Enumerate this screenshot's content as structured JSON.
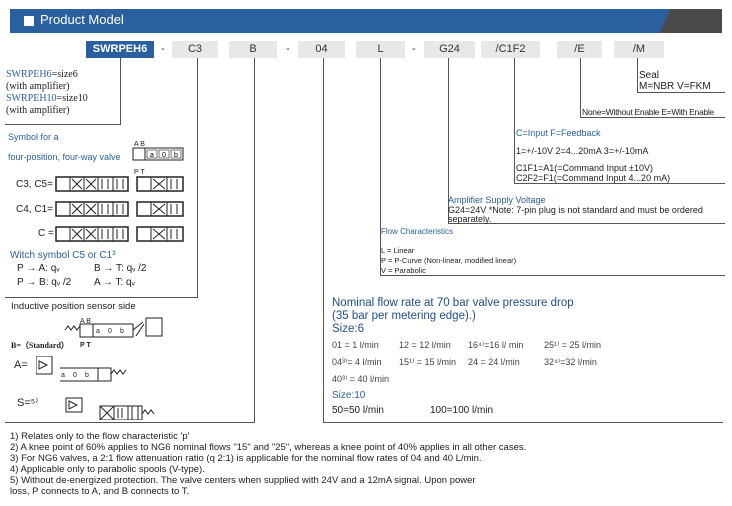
{
  "header": {
    "title": "Product Model"
  },
  "model_codes": [
    {
      "code": "SWRPEH6"
    },
    {
      "code": "C3"
    },
    {
      "code": "B"
    },
    {
      "code": "04"
    },
    {
      "code": "L"
    },
    {
      "code": "G24"
    },
    {
      "code": "/C1F2"
    },
    {
      "code": "/E"
    },
    {
      "code": "/M"
    }
  ],
  "separators": [
    "-",
    "-",
    "-"
  ],
  "size_legend": {
    "l1a": "SWRPEH6",
    "l1b": "=size6",
    "l2": "(with amplifier)",
    "l3a": "SWRPEH10",
    "l3b": "=size10",
    "l4": "(with amplifier)"
  },
  "symbols": {
    "title1": "Symbol for a",
    "title2": "four-position, four-way valve",
    "ports_top": "A B",
    "ports_bottom": "P T",
    "pos": [
      "a",
      "0",
      "b"
    ],
    "rows": [
      "C3, C5=",
      "C4, C1=",
      "C ="
    ],
    "witch_title": "Witch symbol C5 or C1³",
    "flows": [
      "P → A: qᵥ",
      "B → T: qᵥ /2",
      "P → B: qᵥ /2",
      "A → T: qᵥ"
    ]
  },
  "sensor": {
    "title": "Inductive position sensor side",
    "b": "B=（Standard）",
    "a": "A=",
    "s": "S=⁵⁾",
    "ports_top": "A B",
    "ports_bottom": "P T"
  },
  "seal": {
    "title": "Seal",
    "text": "M=NBR V=FKM"
  },
  "enable": {
    "text": "None=Without Enable E=With Enable"
  },
  "signal": {
    "l1": "C=Input  F=Feedback",
    "l2": "1=+/-10V    2=4...20mA    3=+/-10mA",
    "l3": "C1F1=A1(=Command Input ±10V)",
    "l4": "C2F2=F1(=Command Input 4...20 mA)"
  },
  "supply": {
    "title": "Amplifier Supply Voltage",
    "l1": "G24=24V   *Note: 7-pin plug is not standard and must be ordered",
    "l2": "separately."
  },
  "flow_char": {
    "title": "Flow Characteristics",
    "items": [
      "L = Linear",
      "P = P-Curve (Non-linear, modified linear)",
      "V = Parabolic"
    ]
  },
  "nominal": {
    "title1": "Nominal flow rate at 70 bar valve pressure drop",
    "title2": "(35 bar per metering edge).)",
    "size6": "Size:6",
    "rows": [
      [
        "01 = 1 l/min",
        "12  = 12 l/min",
        "16⁴⁾=16 l/ min",
        "25¹⁾ = 25 l/min"
      ],
      [
        "04³⁾= 4 l/min",
        "15¹⁾ = 15 l/min",
        "24  = 24 l/min",
        "32⁴⁾=32 l/min"
      ],
      [
        "40³⁾ = 40 l/min"
      ]
    ],
    "size10": "Size:10",
    "size10_rows": [
      "50=50 l/min",
      "100=100 l/min"
    ]
  },
  "footnotes": [
    "1) Relates only to the flow characteristic 'p'",
    "2) A knee point of 60% applies to NG6 nominal flows \"15\" and \"25\", whereas a knee point of 40% applies in all other cases.",
    "3) For NG6 valves, a 2:1 flow attenuation ratio (q 2:1) is applicable for the nominal flow rates of 04 and 40 L/min.",
    "4) Applicable only to parabolic spools (V-type).",
    "5) Without de-energized protection. The valve centers when supplied with 24V and a 12mA signal. Upon power",
    "loss, P connects to A, and B connects to T."
  ],
  "colors": {
    "brand": "#2a5fa0",
    "dark": "#4a4a4a"
  }
}
